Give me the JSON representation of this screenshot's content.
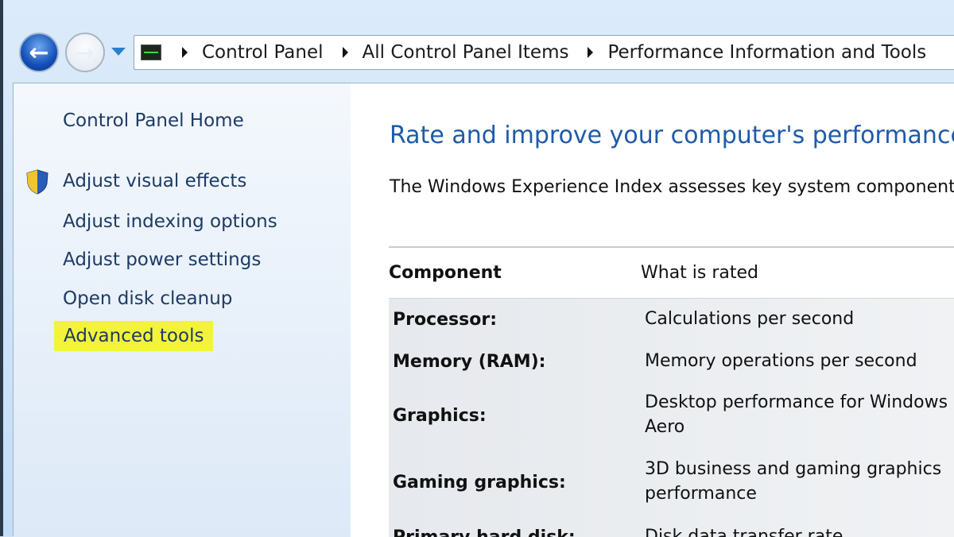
{
  "nav": {
    "back_icon": "arrow-left-icon",
    "forward_icon": "arrow-right-icon"
  },
  "breadcrumb": [
    "Control Panel",
    "All Control Panel Items",
    "Performance Information and Tools"
  ],
  "sidebar": {
    "home": "Control Panel Home",
    "items": [
      "Adjust visual effects",
      "Adjust indexing options",
      "Adjust power settings",
      "Open disk cleanup",
      "Advanced tools"
    ],
    "highlight_color": "#f3f33c"
  },
  "main": {
    "title": "Rate and improve your computer's performance",
    "description": "The Windows Experience Index assesses key system components",
    "table": {
      "headers": [
        "Component",
        "What is rated"
      ],
      "rows": [
        {
          "component": "Processor:",
          "rated": "Calculations per second"
        },
        {
          "component": "Memory (RAM):",
          "rated": "Memory operations per second"
        },
        {
          "component": "Graphics:",
          "rated": "Desktop performance for Windows Aero"
        },
        {
          "component": "Gaming graphics:",
          "rated": "3D business and gaming graphics performance"
        },
        {
          "component": "Primary hard disk:",
          "rated": "Disk data transfer rate"
        }
      ]
    }
  }
}
